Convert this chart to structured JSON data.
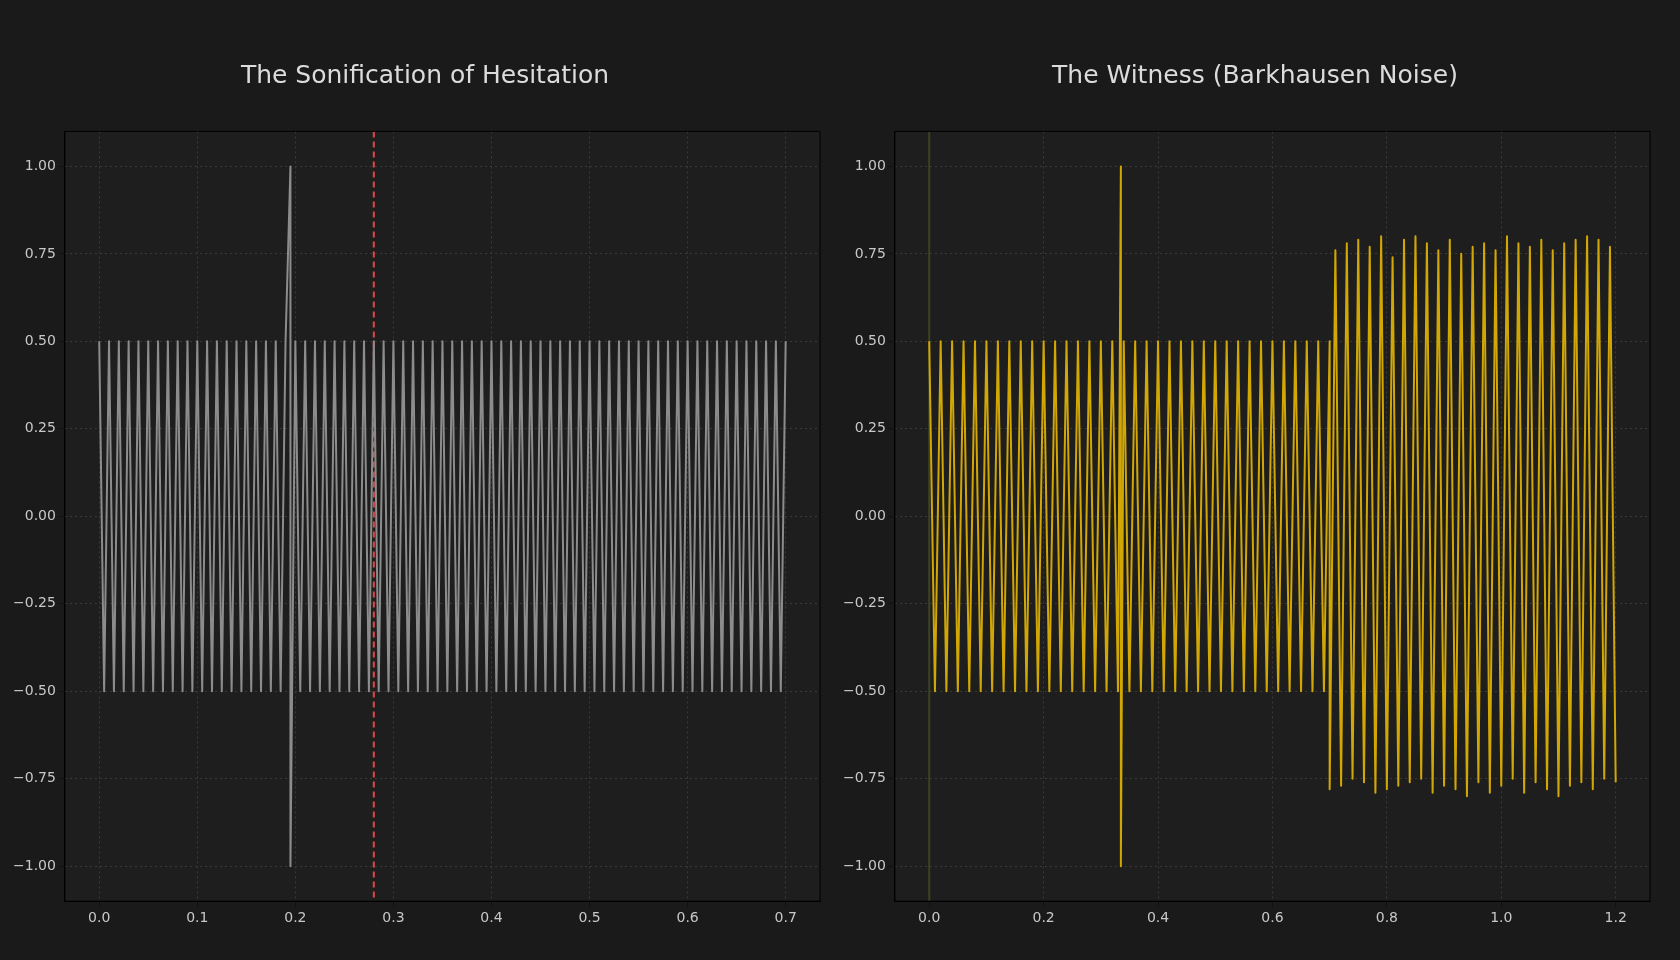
{
  "chart_data": [
    {
      "type": "line",
      "title": "The Sonification of Hesitation",
      "xlim": [
        -0.035,
        0.735
      ],
      "xticks": [
        {
          "value": 0,
          "label": "0.0"
        },
        {
          "value": 0.1,
          "label": "0.1"
        },
        {
          "value": 0.2,
          "label": "0.2"
        },
        {
          "value": 0.3,
          "label": "0.3"
        },
        {
          "value": 0.4,
          "label": "0.4"
        },
        {
          "value": 0.5,
          "label": "0.5"
        },
        {
          "value": 0.6,
          "label": "0.6"
        },
        {
          "value": 0.7,
          "label": "0.7"
        }
      ],
      "ylim": [
        -1.1,
        1.1
      ],
      "yticks": [
        {
          "value": -1,
          "label": "−1.00"
        },
        {
          "value": -0.75,
          "label": "−0.75"
        },
        {
          "value": -0.5,
          "label": "−0.50"
        },
        {
          "value": -0.25,
          "label": "−0.25"
        },
        {
          "value": 0,
          "label": "0.00"
        },
        {
          "value": 0.25,
          "label": "0.25"
        },
        {
          "value": 0.5,
          "label": "0.50"
        },
        {
          "value": 0.75,
          "label": "0.75"
        },
        {
          "value": 1,
          "label": "1.00"
        }
      ],
      "grid": true,
      "legend": false,
      "marker": "none",
      "ref_lines": [
        {
          "axis": "x",
          "value": 0.28,
          "color": "#e0474c",
          "line_style": "dashed"
        }
      ],
      "series": [
        {
          "color": "#8c8c8c",
          "x": [
            0,
            0.005,
            0.01,
            0.015,
            0.02,
            0.025,
            0.03,
            0.035,
            0.04,
            0.045,
            0.05,
            0.055,
            0.06,
            0.065,
            0.07,
            0.075,
            0.08,
            0.085,
            0.09,
            0.095,
            0.1,
            0.105,
            0.11,
            0.115,
            0.12,
            0.125,
            0.13,
            0.135,
            0.14,
            0.145,
            0.15,
            0.155,
            0.16,
            0.165,
            0.17,
            0.175,
            0.18,
            0.185,
            0.19,
            0.195,
            0.195,
            0.2,
            0.205,
            0.21,
            0.215,
            0.22,
            0.225,
            0.23,
            0.235,
            0.24,
            0.245,
            0.25,
            0.255,
            0.26,
            0.265,
            0.27,
            0.275,
            0.28,
            0.285,
            0.29,
            0.295,
            0.3,
            0.305,
            0.31,
            0.315,
            0.32,
            0.325,
            0.33,
            0.335,
            0.34,
            0.345,
            0.35,
            0.355,
            0.36,
            0.365,
            0.37,
            0.375,
            0.38,
            0.385,
            0.39,
            0.395,
            0.4,
            0.405,
            0.41,
            0.415,
            0.42,
            0.425,
            0.43,
            0.435,
            0.44,
            0.445,
            0.45,
            0.455,
            0.46,
            0.465,
            0.47,
            0.475,
            0.48,
            0.485,
            0.49,
            0.495,
            0.5,
            0.505,
            0.51,
            0.515,
            0.52,
            0.525,
            0.53,
            0.535,
            0.54,
            0.545,
            0.55,
            0.555,
            0.56,
            0.565,
            0.57,
            0.575,
            0.58,
            0.585,
            0.59,
            0.595,
            0.6,
            0.605,
            0.61,
            0.615,
            0.62,
            0.625,
            0.63,
            0.635,
            0.64,
            0.645,
            0.65,
            0.655,
            0.66,
            0.665,
            0.67,
            0.675,
            0.68,
            0.685,
            0.69,
            0.695,
            0.7
          ],
          "values": [
            0.5,
            -0.5,
            0.5,
            -0.5,
            0.5,
            -0.5,
            0.5,
            -0.5,
            0.5,
            -0.5,
            0.5,
            -0.5,
            0.5,
            -0.5,
            0.5,
            -0.5,
            0.5,
            -0.5,
            0.5,
            -0.5,
            0.5,
            -0.5,
            0.5,
            -0.5,
            0.5,
            -0.5,
            0.5,
            -0.5,
            0.5,
            -0.5,
            0.5,
            -0.5,
            0.5,
            -0.5,
            0.5,
            -0.5,
            0.5,
            -0.5,
            0.5,
            1,
            -1,
            0.5,
            -0.5,
            0.5,
            -0.5,
            0.5,
            -0.5,
            0.5,
            -0.5,
            0.5,
            -0.5,
            0.5,
            -0.5,
            0.5,
            -0.5,
            0.5,
            -0.5,
            0.5,
            -0.5,
            0.5,
            -0.5,
            0.5,
            -0.5,
            0.5,
            -0.5,
            0.5,
            -0.5,
            0.5,
            -0.5,
            0.5,
            -0.5,
            0.5,
            -0.5,
            0.5,
            -0.5,
            0.5,
            -0.5,
            0.5,
            -0.5,
            0.5,
            -0.5,
            0.5,
            -0.5,
            0.5,
            -0.5,
            0.5,
            -0.5,
            0.5,
            -0.5,
            0.5,
            -0.5,
            0.5,
            -0.5,
            0.5,
            -0.5,
            0.5,
            -0.5,
            0.5,
            -0.5,
            0.5,
            -0.5,
            0.5,
            -0.5,
            0.5,
            -0.5,
            0.5,
            -0.5,
            0.5,
            -0.5,
            0.5,
            -0.5,
            0.5,
            -0.5,
            0.5,
            -0.5,
            0.5,
            -0.5,
            0.5,
            -0.5,
            0.5,
            -0.5,
            0.5,
            -0.5,
            0.5,
            -0.5,
            0.5,
            -0.5,
            0.5,
            -0.5,
            0.5,
            -0.5,
            0.5,
            -0.5,
            0.5,
            -0.5,
            0.5,
            -0.5,
            0.5,
            -0.5,
            0.5,
            -0.5,
            0.5
          ]
        }
      ]
    },
    {
      "type": "line",
      "title": "The Witness (Barkhausen Noise)",
      "xlim": [
        -0.06,
        1.26
      ],
      "xticks": [
        {
          "value": 0,
          "label": "0.0"
        },
        {
          "value": 0.2,
          "label": "0.2"
        },
        {
          "value": 0.4,
          "label": "0.4"
        },
        {
          "value": 0.6,
          "label": "0.6"
        },
        {
          "value": 0.8,
          "label": "0.8"
        },
        {
          "value": 1,
          "label": "1.0"
        },
        {
          "value": 1.2,
          "label": "1.2"
        }
      ],
      "ylim": [
        -1.1,
        1.1
      ],
      "yticks": [
        {
          "value": -1,
          "label": "−1.00"
        },
        {
          "value": -0.75,
          "label": "−0.75"
        },
        {
          "value": -0.5,
          "label": "−0.50"
        },
        {
          "value": -0.25,
          "label": "−0.25"
        },
        {
          "value": 0,
          "label": "0.00"
        },
        {
          "value": 0.25,
          "label": "0.25"
        },
        {
          "value": 0.5,
          "label": "0.50"
        },
        {
          "value": 0.75,
          "label": "0.75"
        },
        {
          "value": 1,
          "label": "1.00"
        }
      ],
      "grid": true,
      "legend": false,
      "marker": "none",
      "ref_lines": [
        {
          "axis": "x",
          "value": 0,
          "color": "#3d4222",
          "line_style": "solid"
        }
      ],
      "series": [
        {
          "color": "#d1a706",
          "x": [
            0,
            0.01,
            0.02,
            0.03,
            0.04,
            0.05,
            0.06,
            0.07,
            0.08,
            0.09,
            0.1,
            0.11,
            0.12,
            0.13,
            0.14,
            0.15,
            0.16,
            0.17,
            0.18,
            0.19,
            0.2,
            0.21,
            0.22,
            0.23,
            0.24,
            0.25,
            0.26,
            0.27,
            0.28,
            0.29,
            0.3,
            0.31,
            0.32,
            0.33,
            0.335,
            0.335,
            0.34,
            0.35,
            0.36,
            0.37,
            0.38,
            0.39,
            0.4,
            0.41,
            0.42,
            0.43,
            0.44,
            0.45,
            0.46,
            0.47,
            0.48,
            0.49,
            0.5,
            0.51,
            0.52,
            0.53,
            0.54,
            0.55,
            0.56,
            0.57,
            0.58,
            0.59,
            0.6,
            0.61,
            0.62,
            0.63,
            0.64,
            0.65,
            0.66,
            0.67,
            0.68,
            0.69,
            0.7,
            0.7,
            0.71,
            0.72,
            0.73,
            0.74,
            0.75,
            0.76,
            0.77,
            0.78,
            0.79,
            0.8,
            0.81,
            0.82,
            0.83,
            0.84,
            0.85,
            0.86,
            0.87,
            0.88,
            0.89,
            0.9,
            0.91,
            0.92,
            0.93,
            0.94,
            0.95,
            0.96,
            0.97,
            0.98,
            0.99,
            1,
            1.01,
            1.02,
            1.03,
            1.04,
            1.05,
            1.06,
            1.07,
            1.08,
            1.09,
            1.1,
            1.11,
            1.12,
            1.13,
            1.14,
            1.15,
            1.16,
            1.17,
            1.18,
            1.19,
            1.2
          ],
          "values": [
            0.5,
            -0.5,
            0.5,
            -0.5,
            0.5,
            -0.5,
            0.5,
            -0.5,
            0.5,
            -0.5,
            0.5,
            -0.5,
            0.5,
            -0.5,
            0.5,
            -0.5,
            0.5,
            -0.5,
            0.5,
            -0.5,
            0.5,
            -0.5,
            0.5,
            -0.5,
            0.5,
            -0.5,
            0.5,
            -0.5,
            0.5,
            -0.5,
            0.5,
            -0.5,
            0.5,
            -0.5,
            1,
            -1,
            0.5,
            -0.5,
            0.5,
            -0.5,
            0.5,
            -0.5,
            0.5,
            -0.5,
            0.5,
            -0.5,
            0.5,
            -0.5,
            0.5,
            -0.5,
            0.5,
            -0.5,
            0.5,
            -0.5,
            0.5,
            -0.5,
            0.5,
            -0.5,
            0.5,
            -0.5,
            0.5,
            -0.5,
            0.5,
            -0.5,
            0.5,
            -0.5,
            0.5,
            -0.5,
            0.5,
            -0.5,
            0.5,
            -0.5,
            0.5,
            -0.78,
            0.76,
            -0.77,
            0.78,
            -0.75,
            0.79,
            -0.76,
            0.77,
            -0.79,
            0.8,
            -0.78,
            0.74,
            -0.77,
            0.79,
            -0.76,
            0.8,
            -0.75,
            0.78,
            -0.79,
            0.76,
            -0.77,
            0.79,
            -0.78,
            0.75,
            -0.8,
            0.77,
            -0.76,
            0.78,
            -0.79,
            0.76,
            -0.77,
            0.8,
            -0.75,
            0.78,
            -0.79,
            0.77,
            -0.76,
            0.79,
            -0.78,
            0.76,
            -0.8,
            0.78,
            -0.77,
            0.79,
            -0.76,
            0.8,
            -0.78,
            0.79,
            -0.75,
            0.77,
            -0.76
          ]
        }
      ]
    }
  ]
}
